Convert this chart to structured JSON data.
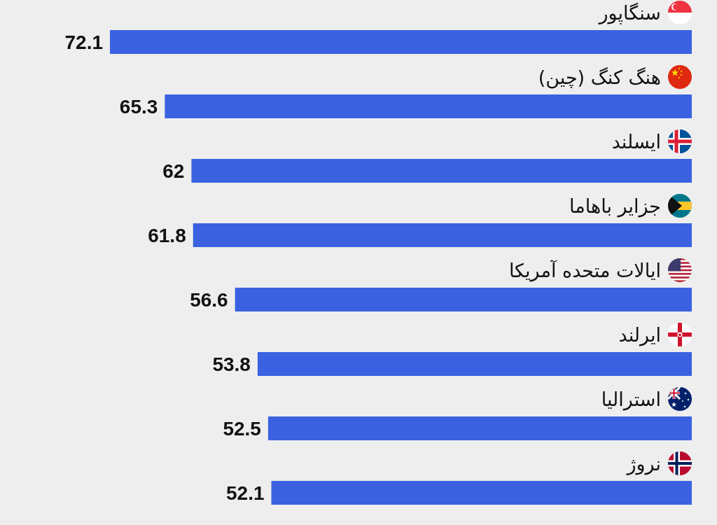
{
  "chart_data": {
    "type": "bar",
    "orientation": "horizontal",
    "categories": [
      "سنگاپور",
      "هنگ کنگ (چین)",
      "ایسلند",
      "جزایر باهاما",
      "ایالات متحده آمریکا",
      "ایرلند",
      "استرالیا",
      "نروژ"
    ],
    "values": [
      72.1,
      65.3,
      62,
      61.8,
      56.6,
      53.8,
      52.5,
      52.1
    ],
    "color": "#3a62e0",
    "xlim": [
      72.1,
      0
    ],
    "data_labels": true
  }
}
